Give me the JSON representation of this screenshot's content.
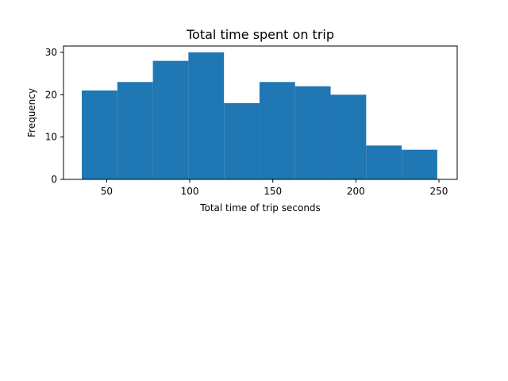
{
  "chart_data": {
    "type": "bar",
    "title": "Total time spent on trip",
    "xlabel": "Total time of trip seconds",
    "ylabel": "Frequency",
    "xlim": [
      24,
      261
    ],
    "ylim": [
      0,
      31.5
    ],
    "xticks": [
      50,
      100,
      150,
      200,
      250
    ],
    "yticks": [
      0,
      10,
      20,
      30
    ],
    "bin_edges": [
      35,
      56.4,
      77.8,
      99.2,
      120.6,
      142,
      163.4,
      184.8,
      206.2,
      227.6,
      249
    ],
    "counts": [
      21,
      23,
      28,
      30,
      18,
      23,
      22,
      20,
      8,
      7
    ],
    "bar_color": "#1f77b4",
    "grid": false,
    "legend": "none"
  }
}
